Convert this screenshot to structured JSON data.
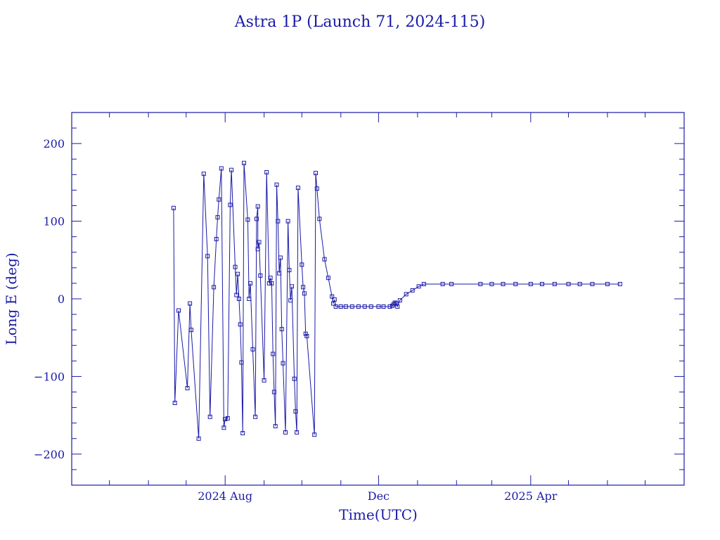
{
  "chart_data": {
    "type": "line",
    "title": "Astra 1P (Launch 71, 2024-115)",
    "xlabel": "Time(UTC)",
    "ylabel": "Long E (deg)",
    "x_axis_type": "date",
    "xlim": [
      "2024-04-01",
      "2025-08-01"
    ],
    "ylim": [
      -240,
      240
    ],
    "x_ticks": [
      {
        "label": "2024 Aug",
        "value": "2024-08-01"
      },
      {
        "label": "Dec",
        "value": "2024-12-01"
      },
      {
        "label": "2025 Apr",
        "value": "2025-04-01"
      }
    ],
    "y_ticks": [
      {
        "label": "200",
        "value": 200
      },
      {
        "label": "100",
        "value": 100
      },
      {
        "label": "0",
        "value": 0
      },
      {
        "label": "−100",
        "value": -100
      },
      {
        "label": "−200",
        "value": -200
      }
    ],
    "grid": false,
    "marker": "square",
    "color": "#1a1aa8",
    "series": [
      {
        "points": [
          [
            "2024-06-21",
            117
          ],
          [
            "2024-06-22",
            -134
          ],
          [
            "2024-06-25",
            -15
          ],
          [
            "2024-07-02",
            -115
          ],
          [
            "2024-07-04",
            -6
          ],
          [
            "2024-07-05",
            -40
          ],
          [
            "2024-07-11",
            -180
          ],
          [
            "2024-07-15",
            161
          ],
          [
            "2024-07-18",
            55
          ],
          [
            "2024-07-20",
            -152
          ],
          [
            "2024-07-23",
            15
          ],
          [
            "2024-07-25",
            77
          ],
          [
            "2024-07-26",
            105
          ],
          [
            "2024-07-27",
            128
          ],
          [
            "2024-07-29",
            168
          ],
          [
            "2024-07-31",
            -166
          ],
          [
            "2024-08-01",
            -155
          ],
          [
            "2024-08-03",
            -154
          ],
          [
            "2024-08-05",
            121
          ],
          [
            "2024-08-06",
            166
          ],
          [
            "2024-08-09",
            41
          ],
          [
            "2024-08-10",
            5
          ],
          [
            "2024-08-11",
            32
          ],
          [
            "2024-08-12",
            0
          ],
          [
            "2024-08-13",
            -33
          ],
          [
            "2024-08-14",
            -82
          ],
          [
            "2024-08-15",
            -173
          ],
          [
            "2024-08-16",
            175
          ],
          [
            "2024-08-19",
            102
          ],
          [
            "2024-08-20",
            0
          ],
          [
            "2024-08-21",
            20
          ],
          [
            "2024-08-23",
            -65
          ],
          [
            "2024-08-25",
            -152
          ],
          [
            "2024-08-26",
            103
          ],
          [
            "2024-08-27",
            119
          ],
          [
            "2024-08-27",
            64
          ],
          [
            "2024-08-28",
            73
          ],
          [
            "2024-08-29",
            30
          ],
          [
            "2024-09-01",
            -105
          ],
          [
            "2024-09-03",
            163
          ],
          [
            "2024-09-05",
            20
          ],
          [
            "2024-09-06",
            27
          ],
          [
            "2024-09-07",
            20
          ],
          [
            "2024-09-08",
            -71
          ],
          [
            "2024-09-09",
            -120
          ],
          [
            "2024-09-10",
            -164
          ],
          [
            "2024-09-11",
            147
          ],
          [
            "2024-09-12",
            100
          ],
          [
            "2024-09-13",
            33
          ],
          [
            "2024-09-14",
            53
          ],
          [
            "2024-09-15",
            -39
          ],
          [
            "2024-09-16",
            -83
          ],
          [
            "2024-09-18",
            -172
          ],
          [
            "2024-09-20",
            100
          ],
          [
            "2024-09-21",
            37
          ],
          [
            "2024-09-22",
            -2
          ],
          [
            "2024-09-23",
            16
          ],
          [
            "2024-09-25",
            -103
          ],
          [
            "2024-09-26",
            -145
          ],
          [
            "2024-09-27",
            -172
          ],
          [
            "2024-09-28",
            143
          ],
          [
            "2024-10-01",
            44
          ],
          [
            "2024-10-02",
            15
          ],
          [
            "2024-10-03",
            7
          ],
          [
            "2024-10-04",
            -45
          ],
          [
            "2024-10-05",
            -48
          ],
          [
            "2024-10-11",
            -175
          ],
          [
            "2024-10-12",
            162
          ],
          [
            "2024-10-13",
            142
          ],
          [
            "2024-10-15",
            103
          ],
          [
            "2024-10-19",
            51
          ],
          [
            "2024-10-22",
            27
          ],
          [
            "2024-10-25",
            3
          ],
          [
            "2024-10-26",
            -6
          ],
          [
            "2024-10-27",
            -1
          ],
          [
            "2024-10-28",
            -10
          ],
          [
            "2024-11-01",
            -10
          ],
          [
            "2024-11-05",
            -10
          ],
          [
            "2024-11-10",
            -10
          ],
          [
            "2024-11-15",
            -10
          ],
          [
            "2024-11-20",
            -10
          ],
          [
            "2024-11-25",
            -10
          ],
          [
            "2024-12-01",
            -10
          ],
          [
            "2024-12-05",
            -10
          ],
          [
            "2024-12-10",
            -10
          ],
          [
            "2024-12-12",
            -9
          ],
          [
            "2024-12-13",
            -7
          ],
          [
            "2024-12-14",
            -5
          ],
          [
            "2024-12-15",
            -6
          ],
          [
            "2024-12-16",
            -10
          ],
          [
            "2024-12-18",
            -2
          ],
          [
            "2024-12-23",
            6
          ],
          [
            "2024-12-28",
            11
          ],
          [
            "2025-01-02",
            16
          ],
          [
            "2025-01-06",
            19
          ],
          [
            "2025-01-21",
            19
          ],
          [
            "2025-01-28",
            19
          ],
          [
            "2025-02-20",
            19
          ],
          [
            "2025-03-01",
            19
          ],
          [
            "2025-03-10",
            19
          ],
          [
            "2025-03-20",
            19
          ],
          [
            "2025-04-01",
            19
          ],
          [
            "2025-04-10",
            19
          ],
          [
            "2025-04-20",
            19
          ],
          [
            "2025-05-01",
            19
          ],
          [
            "2025-05-10",
            19
          ],
          [
            "2025-05-20",
            19
          ],
          [
            "2025-06-01",
            19
          ],
          [
            "2025-06-11",
            19
          ]
        ]
      }
    ]
  }
}
